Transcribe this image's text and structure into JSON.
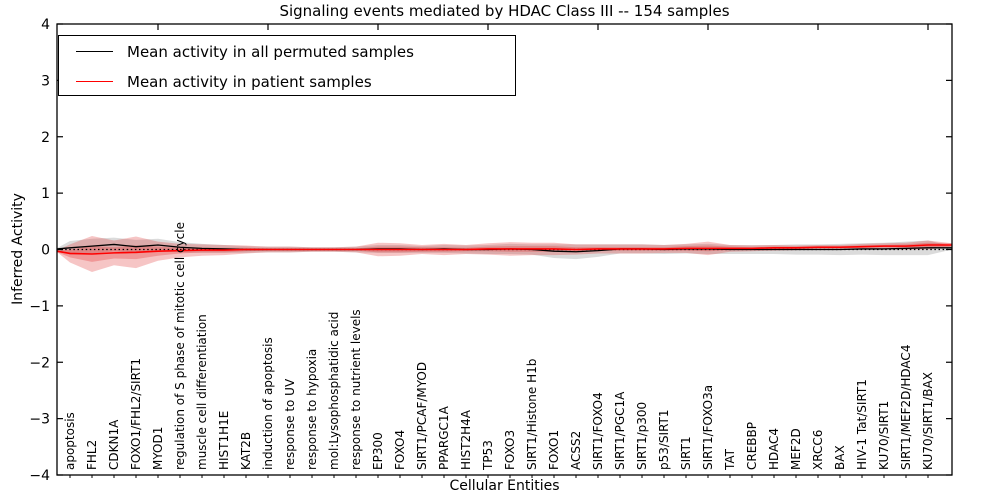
{
  "chart_data": {
    "type": "line",
    "title": "Signaling events mediated by HDAC Class III -- 154 samples",
    "xlabel": "Cellular Entities",
    "ylabel": "Inferred Activity",
    "ylim": [
      -4,
      4
    ],
    "y_ticks": [
      -4,
      -3,
      -2,
      -1,
      0,
      1,
      2,
      3,
      4
    ],
    "x_major_tick_indices": [
      4,
      9,
      14,
      19,
      24,
      29,
      34,
      39
    ],
    "grid": false,
    "legend_position": "upper left",
    "colors": {
      "permuted_line": "#000000",
      "patient_line": "#ff0000",
      "permuted_band": "#999999",
      "patient_band": "#e03030",
      "zero_line": "#000000"
    },
    "categories": [
      "apoptosis",
      "FHL2",
      "CDKN1A",
      "FOXO1/FHL2/SIRT1",
      "MYOD1",
      "regulation of S phase of mitotic cell cycle",
      "muscle cell differentiation",
      "HIST1H1E",
      "KAT2B",
      "induction of apoptosis",
      "response to UV",
      "response to hypoxia",
      "mol:Lysophosphatidic acid",
      "response to nutrient levels",
      "EP300",
      "FOXO4",
      "SIRT1/PCAF/MYOD",
      "PPARGC1A",
      "HIST2H4A",
      "TP53",
      "FOXO3",
      "SIRT1/Histone H1b",
      "FOXO1",
      "ACSS2",
      "SIRT1/FOXO4",
      "SIRT1/PGC1A",
      "SIRT1/p300",
      "p53/SIRT1",
      "SIRT1",
      "SIRT1/FOXO3a",
      "TAT",
      "CREBBP",
      "HDAC4",
      "MEF2D",
      "XRCC6",
      "BAX",
      "HIV-1 Tat/SIRT1",
      "KU70/SIRT1",
      "SIRT1/MEF2D/HDAC4",
      "KU70/SIRT1/BAX"
    ],
    "legend": [
      {
        "label": "Mean activity in all permuted samples",
        "color": "#000000"
      },
      {
        "label": "Mean activity in patient samples",
        "color": "#ff0000"
      }
    ],
    "series": [
      {
        "name": "Mean activity in all permuted samples",
        "color": "#000000",
        "values": [
          0.03,
          0.06,
          0.09,
          0.05,
          0.08,
          0.04,
          0.02,
          0.01,
          0.0,
          0.0,
          0.0,
          0.0,
          0.0,
          0.0,
          0.01,
          0.01,
          0.0,
          0.01,
          0.0,
          0.0,
          0.01,
          0.0,
          -0.03,
          -0.04,
          -0.02,
          0.01,
          0.01,
          0.0,
          0.01,
          0.01,
          0.0,
          0.0,
          0.0,
          0.0,
          0.0,
          0.0,
          0.01,
          0.01,
          0.02,
          0.03
        ]
      },
      {
        "name": "Mean activity in patient samples",
        "color": "#ff0000",
        "values": [
          -0.07,
          -0.08,
          -0.06,
          -0.05,
          -0.03,
          -0.02,
          -0.01,
          -0.01,
          0.0,
          0.0,
          0.0,
          0.0,
          0.0,
          0.0,
          0.0,
          0.0,
          0.0,
          0.0,
          0.0,
          0.01,
          0.01,
          0.01,
          0.01,
          0.0,
          0.01,
          0.01,
          0.01,
          0.01,
          0.02,
          0.02,
          0.02,
          0.02,
          0.03,
          0.03,
          0.04,
          0.04,
          0.05,
          0.06,
          0.06,
          0.08
        ]
      }
    ],
    "bands": [
      {
        "name": "permuted-range",
        "center_series": 0,
        "style": "gray",
        "half_width": [
          0.12,
          0.13,
          0.12,
          0.12,
          0.11,
          0.09,
          0.08,
          0.07,
          0.06,
          0.05,
          0.05,
          0.04,
          0.04,
          0.05,
          0.07,
          0.07,
          0.06,
          0.07,
          0.07,
          0.08,
          0.09,
          0.09,
          0.12,
          0.13,
          0.11,
          0.08,
          0.08,
          0.08,
          0.08,
          0.09,
          0.08,
          0.08,
          0.08,
          0.09,
          0.09,
          0.1,
          0.1,
          0.11,
          0.12,
          0.13
        ]
      },
      {
        "name": "patient-range-outer",
        "center_series": 1,
        "style": "red",
        "half_width": [
          0.16,
          0.32,
          0.22,
          0.28,
          0.17,
          0.12,
          0.1,
          0.09,
          0.07,
          0.05,
          0.05,
          0.04,
          0.04,
          0.05,
          0.12,
          0.11,
          0.08,
          0.1,
          0.08,
          0.1,
          0.12,
          0.11,
          0.11,
          0.09,
          0.08,
          0.08,
          0.08,
          0.07,
          0.08,
          0.12,
          0.06,
          0.05,
          0.05,
          0.04,
          0.04,
          0.04,
          0.05,
          0.05,
          0.06,
          0.08
        ]
      },
      {
        "name": "patient-range-inner",
        "center_series": 1,
        "style": "red",
        "half_width": [
          0.07,
          0.14,
          0.1,
          0.12,
          0.08,
          0.05,
          0.04,
          0.04,
          0.03,
          0.02,
          0.02,
          0.02,
          0.02,
          0.02,
          0.05,
          0.05,
          0.04,
          0.04,
          0.03,
          0.04,
          0.05,
          0.05,
          0.05,
          0.04,
          0.03,
          0.03,
          0.03,
          0.03,
          0.04,
          0.05,
          0.03,
          0.02,
          0.02,
          0.02,
          0.02,
          0.02,
          0.02,
          0.02,
          0.03,
          0.04
        ]
      }
    ],
    "zero_reference_line": 0
  }
}
